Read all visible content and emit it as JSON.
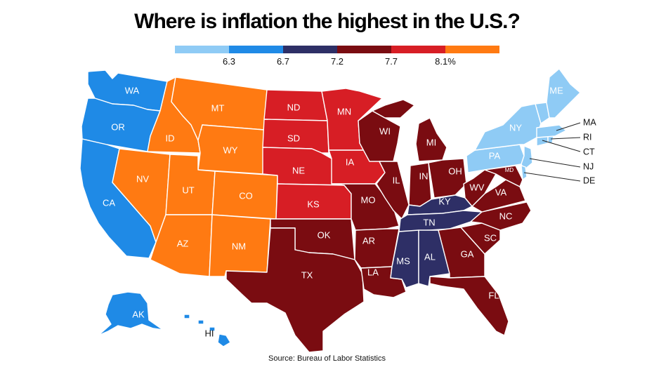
{
  "title": "Where is inflation the highest in the U.S.?",
  "source": "Source: Bureau of Labor Statistics",
  "legend": {
    "colors": [
      "#8fcbf5",
      "#1f8ae6",
      "#2e2f66",
      "#7a0c11",
      "#d71e25",
      "#ff7a12"
    ],
    "ticks": [
      "6.3",
      "6.7",
      "7.2",
      "7.7",
      "8.1%"
    ]
  },
  "colors": {
    "light_blue": "#8fcbf5",
    "blue": "#1f8ae6",
    "navy": "#2e2f66",
    "dark_red": "#7a0c11",
    "red": "#d71e25",
    "orange": "#ff7a12"
  },
  "states": {
    "WA": "WA",
    "OR": "OR",
    "CA": "CA",
    "AK": "AK",
    "HI": "HI",
    "ID": "ID",
    "MT": "MT",
    "WY": "WY",
    "NV": "NV",
    "UT": "UT",
    "CO": "CO",
    "AZ": "AZ",
    "NM": "NM",
    "ND": "ND",
    "SD": "SD",
    "NE": "NE",
    "KS": "KS",
    "MN": "MN",
    "IA": "IA",
    "OK": "OK",
    "TX": "TX",
    "MO": "MO",
    "AR": "AR",
    "LA": "LA",
    "WI": "WI",
    "IL": "IL",
    "MI": "MI",
    "IN": "IN",
    "OH": "OH",
    "KY": "KY",
    "TN": "TN",
    "MS": "MS",
    "AL": "AL",
    "GA": "GA",
    "FL": "FL",
    "SC": "SC",
    "NC": "NC",
    "VA": "VA",
    "WV": "WV",
    "MD": "MD",
    "PA": "PA",
    "NY": "NY",
    "ME": "ME",
    "MA": "MA",
    "RI": "RI",
    "CT": "CT",
    "NJ": "NJ",
    "DE": "DE"
  }
}
